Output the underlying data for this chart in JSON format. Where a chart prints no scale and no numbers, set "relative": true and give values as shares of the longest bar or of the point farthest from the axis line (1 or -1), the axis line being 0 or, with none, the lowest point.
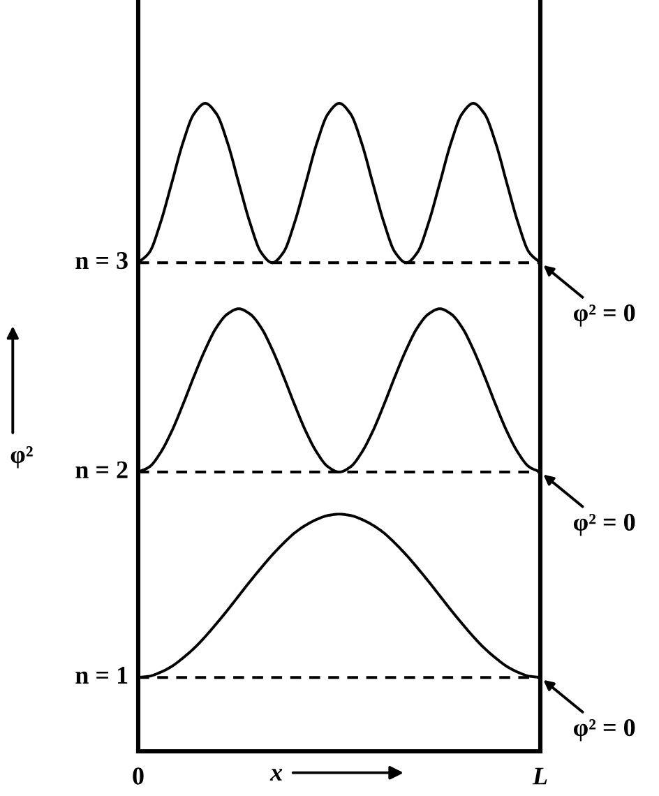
{
  "chart_data": {
    "type": "line",
    "relative": true,
    "xlabel": "x",
    "ylabel": "φ²",
    "categories": [
      "0",
      null,
      null,
      null,
      null,
      null,
      null,
      null,
      null,
      null,
      null,
      null,
      null,
      null,
      null,
      null,
      null,
      null,
      null,
      null,
      null,
      null,
      null,
      null,
      null,
      null,
      null,
      null,
      null,
      null,
      null,
      null,
      null,
      null,
      null,
      null,
      "L"
    ],
    "series": [
      {
        "name": "n = 1",
        "color": "#000000",
        "values": [
          0.114,
          0.116,
          0.122,
          0.131,
          0.144,
          0.159,
          0.177,
          0.197,
          0.218,
          0.24,
          0.262,
          0.283,
          0.303,
          0.321,
          0.337,
          0.349,
          0.358,
          0.364,
          0.366,
          0.364,
          0.358,
          0.349,
          0.337,
          0.321,
          0.303,
          0.283,
          0.262,
          0.24,
          0.218,
          0.197,
          0.177,
          0.159,
          0.144,
          0.131,
          0.122,
          0.116,
          0.114
        ]
      },
      {
        "name": "n = 2",
        "color": "#000000",
        "values": [
          0.431,
          0.439,
          0.461,
          0.494,
          0.535,
          0.579,
          0.62,
          0.654,
          0.675,
          0.683,
          0.675,
          0.654,
          0.62,
          0.579,
          0.535,
          0.494,
          0.461,
          0.439,
          0.431,
          0.439,
          0.461,
          0.494,
          0.535,
          0.579,
          0.62,
          0.654,
          0.675,
          0.683,
          0.675,
          0.654,
          0.62,
          0.579,
          0.535,
          0.494,
          0.461,
          0.439,
          0.431
        ]
      },
      {
        "name": "n = 3",
        "color": "#000000",
        "values": [
          0.754,
          0.77,
          0.816,
          0.877,
          0.939,
          0.984,
          1.0,
          0.984,
          0.939,
          0.877,
          0.816,
          0.77,
          0.754,
          0.77,
          0.816,
          0.877,
          0.939,
          0.984,
          1.0,
          0.984,
          0.939,
          0.877,
          0.816,
          0.77,
          0.754,
          0.77,
          0.816,
          0.877,
          0.939,
          0.984,
          1.0,
          0.984,
          0.939,
          0.877,
          0.816,
          0.77,
          0.754
        ]
      }
    ],
    "tick_labels": "x",
    "ref_lines": [
      {
        "axis": "y",
        "value": 0.114,
        "color": "#000000",
        "line_style": "dashed"
      },
      {
        "axis": "y",
        "value": 0.431,
        "color": "#000000",
        "line_style": "dashed"
      },
      {
        "axis": "y",
        "value": 0.754,
        "color": "#000000",
        "line_style": "dashed"
      }
    ],
    "annotations": [
      {
        "text": "φ² = 0",
        "x": "L",
        "y": 0.754
      },
      {
        "text": "φ² = 0",
        "x": "L",
        "y": 0.431
      },
      {
        "text": "φ² = 0",
        "x": "L",
        "y": 0.114
      }
    ]
  }
}
